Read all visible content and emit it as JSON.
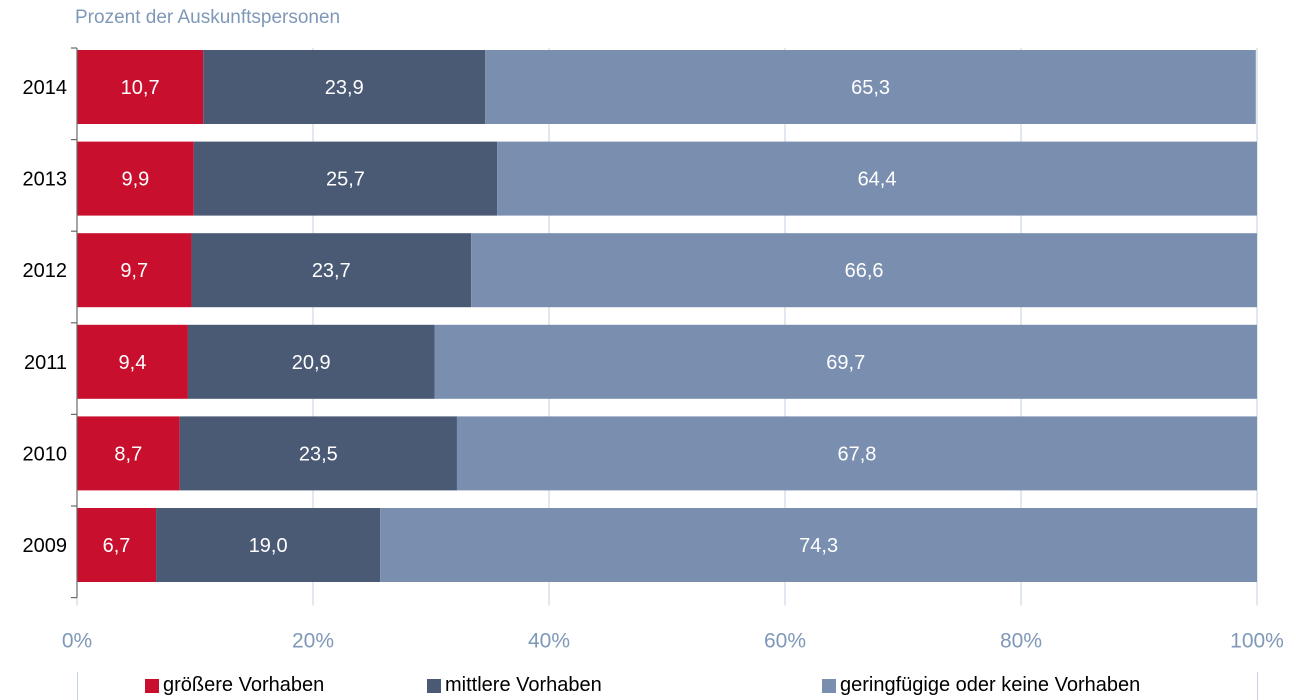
{
  "chart_data": {
    "type": "bar",
    "orientation": "horizontal",
    "stacked": "percent",
    "ylabel": "Prozent der Auskunftspersonen",
    "categories": [
      "2014",
      "2013",
      "2012",
      "2011",
      "2010",
      "2009"
    ],
    "series": [
      {
        "name": "größere Vorhaben",
        "color": "#c8102e",
        "values": [
          10.7,
          9.9,
          9.7,
          9.4,
          8.7,
          6.7
        ]
      },
      {
        "name": "mittlere Vorhaben",
        "color": "#4a5a75",
        "values": [
          23.9,
          25.7,
          23.7,
          20.9,
          23.5,
          19.0
        ]
      },
      {
        "name": "geringfügige oder keine Vorhaben",
        "color": "#7a8fb0",
        "values": [
          65.3,
          64.4,
          66.6,
          69.7,
          67.8,
          74.3
        ]
      }
    ],
    "data_labels": [
      [
        "10,7",
        "23,9",
        "65,3"
      ],
      [
        "9,9",
        "25,7",
        "64,4"
      ],
      [
        "9,7",
        "23,7",
        "66,6"
      ],
      [
        "9,4",
        "20,9",
        "69,7"
      ],
      [
        "8,7",
        "23,5",
        "67,8"
      ],
      [
        "6,7",
        "19,0",
        "74,3"
      ]
    ],
    "x_ticks": [
      "0%",
      "20%",
      "40%",
      "60%",
      "80%",
      "100%"
    ],
    "xlim": [
      0,
      100
    ],
    "grid": true,
    "legend_position": "bottom"
  }
}
